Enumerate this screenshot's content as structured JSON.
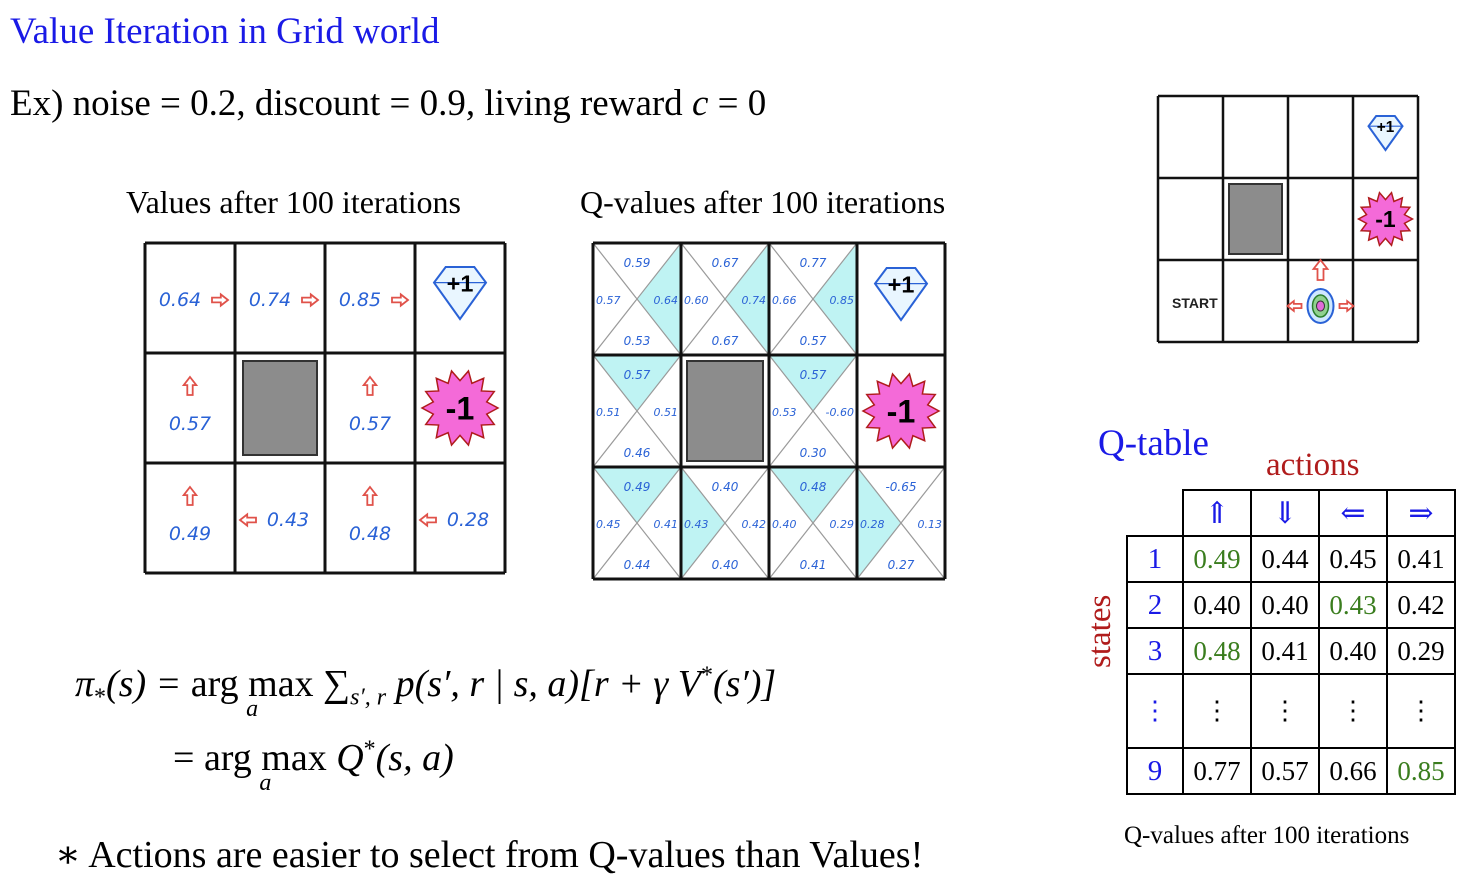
{
  "title": "Value Iteration in Grid world",
  "example": {
    "prefix": "Ex)  noise = 0.2, discount = 0.9, living reward ",
    "var": "c",
    "suffix": " = 0"
  },
  "values_grid": {
    "caption": "Values after 100 iterations",
    "cells": [
      "0.64",
      "0.74",
      "0.85",
      "0.57",
      "0.57",
      "0.49",
      "0.43",
      "0.48",
      "0.28"
    ],
    "plus_label": "+1",
    "minus_label": "-1"
  },
  "q_grid": {
    "caption": "Q-values after 100 iterations",
    "cells": [
      {
        "up": "0.59",
        "left": "0.57",
        "right": "0.64",
        "down": "0.53",
        "best": "right"
      },
      {
        "up": "0.67",
        "left": "0.60",
        "right": "0.74",
        "down": "0.67",
        "best": "right"
      },
      {
        "up": "0.77",
        "left": "0.66",
        "right": "0.85",
        "down": "0.57",
        "best": "right"
      },
      {
        "up": "0.57",
        "left": "0.51",
        "right": "0.51",
        "down": "0.46",
        "best": "up"
      },
      {
        "up": "0.57",
        "left": "0.53",
        "right": "-0.60",
        "down": "0.30",
        "best": "up"
      },
      {
        "up": "0.49",
        "left": "0.45",
        "right": "0.41",
        "down": "0.44",
        "best": "up"
      },
      {
        "up": "0.40",
        "left": "0.43",
        "right": "0.42",
        "down": "0.40",
        "best": "left"
      },
      {
        "up": "0.48",
        "left": "0.40",
        "right": "0.29",
        "down": "0.41",
        "best": "up"
      },
      {
        "up": "-0.65",
        "left": "0.28",
        "right": "0.13",
        "down": "0.27",
        "best": "left"
      }
    ],
    "plus_label": "+1",
    "minus_label": "-1"
  },
  "small_grid": {
    "plus_label": "+1",
    "minus_label": "-1",
    "start_label": "START"
  },
  "formula": {
    "line1_lhs": "π",
    "line1_sub": "*",
    "line1_arg": "(s) = ",
    "argmax": "arg max",
    "sub": "a",
    "line1_rhs": "∑",
    "line1_rhs_sub": "s′, r",
    "line1_rhs2": " p(s′, r | s, a)[r + γ V",
    "line1_sup": "*",
    "line1_end": "(s′)]",
    "line2_eq": "= ",
    "line2_rhs": " Q",
    "line2_sup": "*",
    "line2_end": "(s, a)"
  },
  "note": "∗ Actions are easier to select from Q-values than Values!",
  "qtable": {
    "title": "Q-table",
    "actions_label": "actions",
    "states_label": "states",
    "headers": [
      "⇑",
      "⇓",
      "⇐",
      "⇒"
    ],
    "rows": [
      {
        "state": "1",
        "values": [
          "0.49",
          "0.44",
          "0.45",
          "0.41"
        ],
        "best": 0
      },
      {
        "state": "2",
        "values": [
          "0.40",
          "0.40",
          "0.43",
          "0.42"
        ],
        "best": 2
      },
      {
        "state": "3",
        "values": [
          "0.48",
          "0.41",
          "0.40",
          "0.29"
        ],
        "best": 0
      },
      {
        "state": "⋮",
        "values": [
          "⋮",
          "⋮",
          "⋮",
          "⋮"
        ],
        "best": -1
      },
      {
        "state": "9",
        "values": [
          "0.77",
          "0.57",
          "0.66",
          "0.85"
        ],
        "best": 3
      }
    ],
    "caption": "Q-values after 100 iterations"
  },
  "colors": {
    "title_blue": "#1a1ae6",
    "label_red": "#b01c1c",
    "best_green": "#3a7d1e",
    "cyan_fill": "#bff3f3",
    "hand_blue": "#2a62d6",
    "arrow_red": "#e0524a",
    "wall_gray": "#8c8c8c",
    "pink": "#f46ad8"
  }
}
